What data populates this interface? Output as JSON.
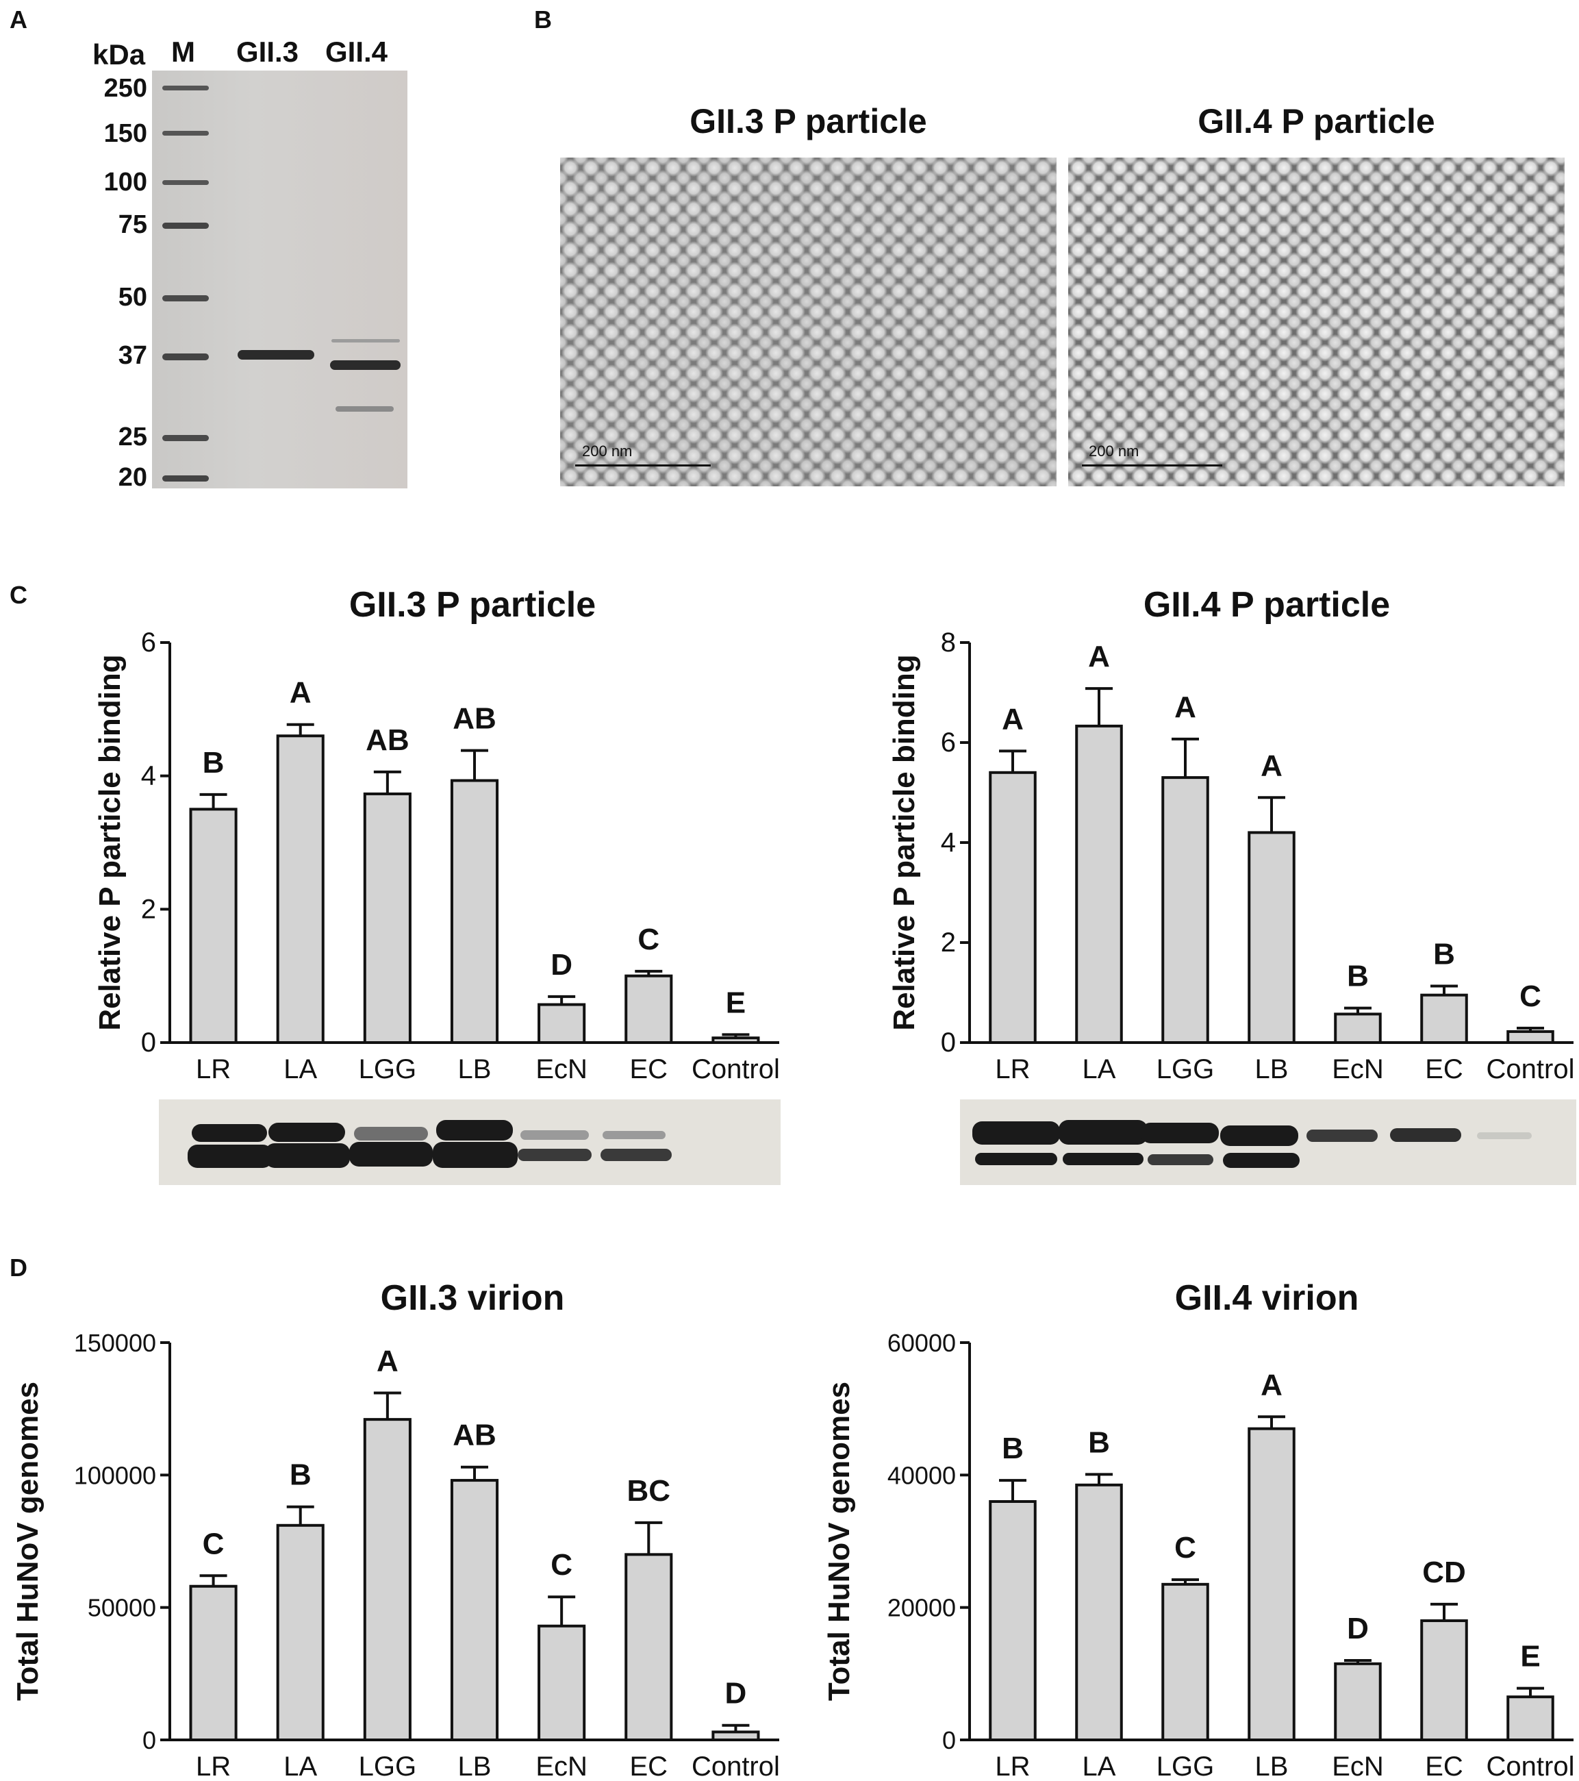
{
  "panels": {
    "a": "A",
    "b": "B",
    "c": "C",
    "d": "D"
  },
  "gel": {
    "kda_label": "kDa",
    "lanes": [
      "M",
      "GII.3",
      "GII.4"
    ],
    "markers": [
      "250",
      "150",
      "100",
      "75",
      "50",
      "37",
      "25",
      "20"
    ]
  },
  "em": {
    "left_title": "GII.3 P particle",
    "right_title": "GII.4 P particle",
    "scale_label": "200 nm"
  },
  "chart_data": [
    {
      "type": "bar",
      "title": "GII.3 P particle",
      "ylabel": "Relative P particle binding",
      "xlabel": "",
      "ylim": [
        0,
        6
      ],
      "yticks": [
        0,
        2,
        4,
        6
      ],
      "categories": [
        "LR",
        "LA",
        "LGG",
        "LB",
        "EcN",
        "EC",
        "Control"
      ],
      "values": [
        3.5,
        4.6,
        3.73,
        3.93,
        0.57,
        1.0,
        0.07
      ],
      "errors": [
        0.22,
        0.17,
        0.33,
        0.45,
        0.12,
        0.07,
        0.05
      ],
      "letters": [
        "B",
        "A",
        "AB",
        "AB",
        "D",
        "C",
        "E"
      ],
      "bar_color": "#d3d3d3"
    },
    {
      "type": "bar",
      "title": "GII.4 P particle",
      "ylabel": "Relative P particle binding",
      "xlabel": "",
      "ylim": [
        0,
        8
      ],
      "yticks": [
        0,
        2,
        4,
        6,
        8
      ],
      "categories": [
        "LR",
        "LA",
        "LGG",
        "LB",
        "EcN",
        "EC",
        "Control"
      ],
      "values": [
        5.4,
        6.33,
        5.3,
        4.2,
        0.57,
        0.95,
        0.22
      ],
      "errors": [
        0.43,
        0.75,
        0.77,
        0.7,
        0.12,
        0.18,
        0.07
      ],
      "letters": [
        "A",
        "A",
        "A",
        "A",
        "B",
        "B",
        "C"
      ],
      "bar_color": "#d3d3d3"
    },
    {
      "type": "bar",
      "title": "GII.3 virion",
      "ylabel": "Total HuNoV genomes",
      "xlabel": "",
      "ylim": [
        0,
        150000
      ],
      "yticks": [
        0,
        50000,
        100000,
        150000
      ],
      "categories": [
        "LR",
        "LA",
        "LGG",
        "LB",
        "EcN",
        "EC",
        "Control"
      ],
      "values": [
        58000,
        81000,
        121000,
        98000,
        43000,
        70000,
        3000
      ],
      "errors": [
        4000,
        7000,
        10000,
        5000,
        11000,
        12000,
        2500
      ],
      "letters": [
        "C",
        "B",
        "A",
        "AB",
        "C",
        "BC",
        "D"
      ],
      "bar_color": "#d3d3d3"
    },
    {
      "type": "bar",
      "title": "GII.4 virion",
      "ylabel": "Total HuNoV genomes",
      "xlabel": "",
      "ylim": [
        0,
        60000
      ],
      "yticks": [
        0,
        20000,
        40000,
        60000
      ],
      "categories": [
        "LR",
        "LA",
        "LGG",
        "LB",
        "EcN",
        "EC",
        "Control"
      ],
      "values": [
        36000,
        38500,
        23500,
        47000,
        11500,
        18000,
        6500
      ],
      "errors": [
        3200,
        1600,
        700,
        1800,
        500,
        2500,
        1300
      ],
      "letters": [
        "B",
        "B",
        "C",
        "A",
        "D",
        "CD",
        "E"
      ],
      "bar_color": "#d3d3d3"
    }
  ]
}
